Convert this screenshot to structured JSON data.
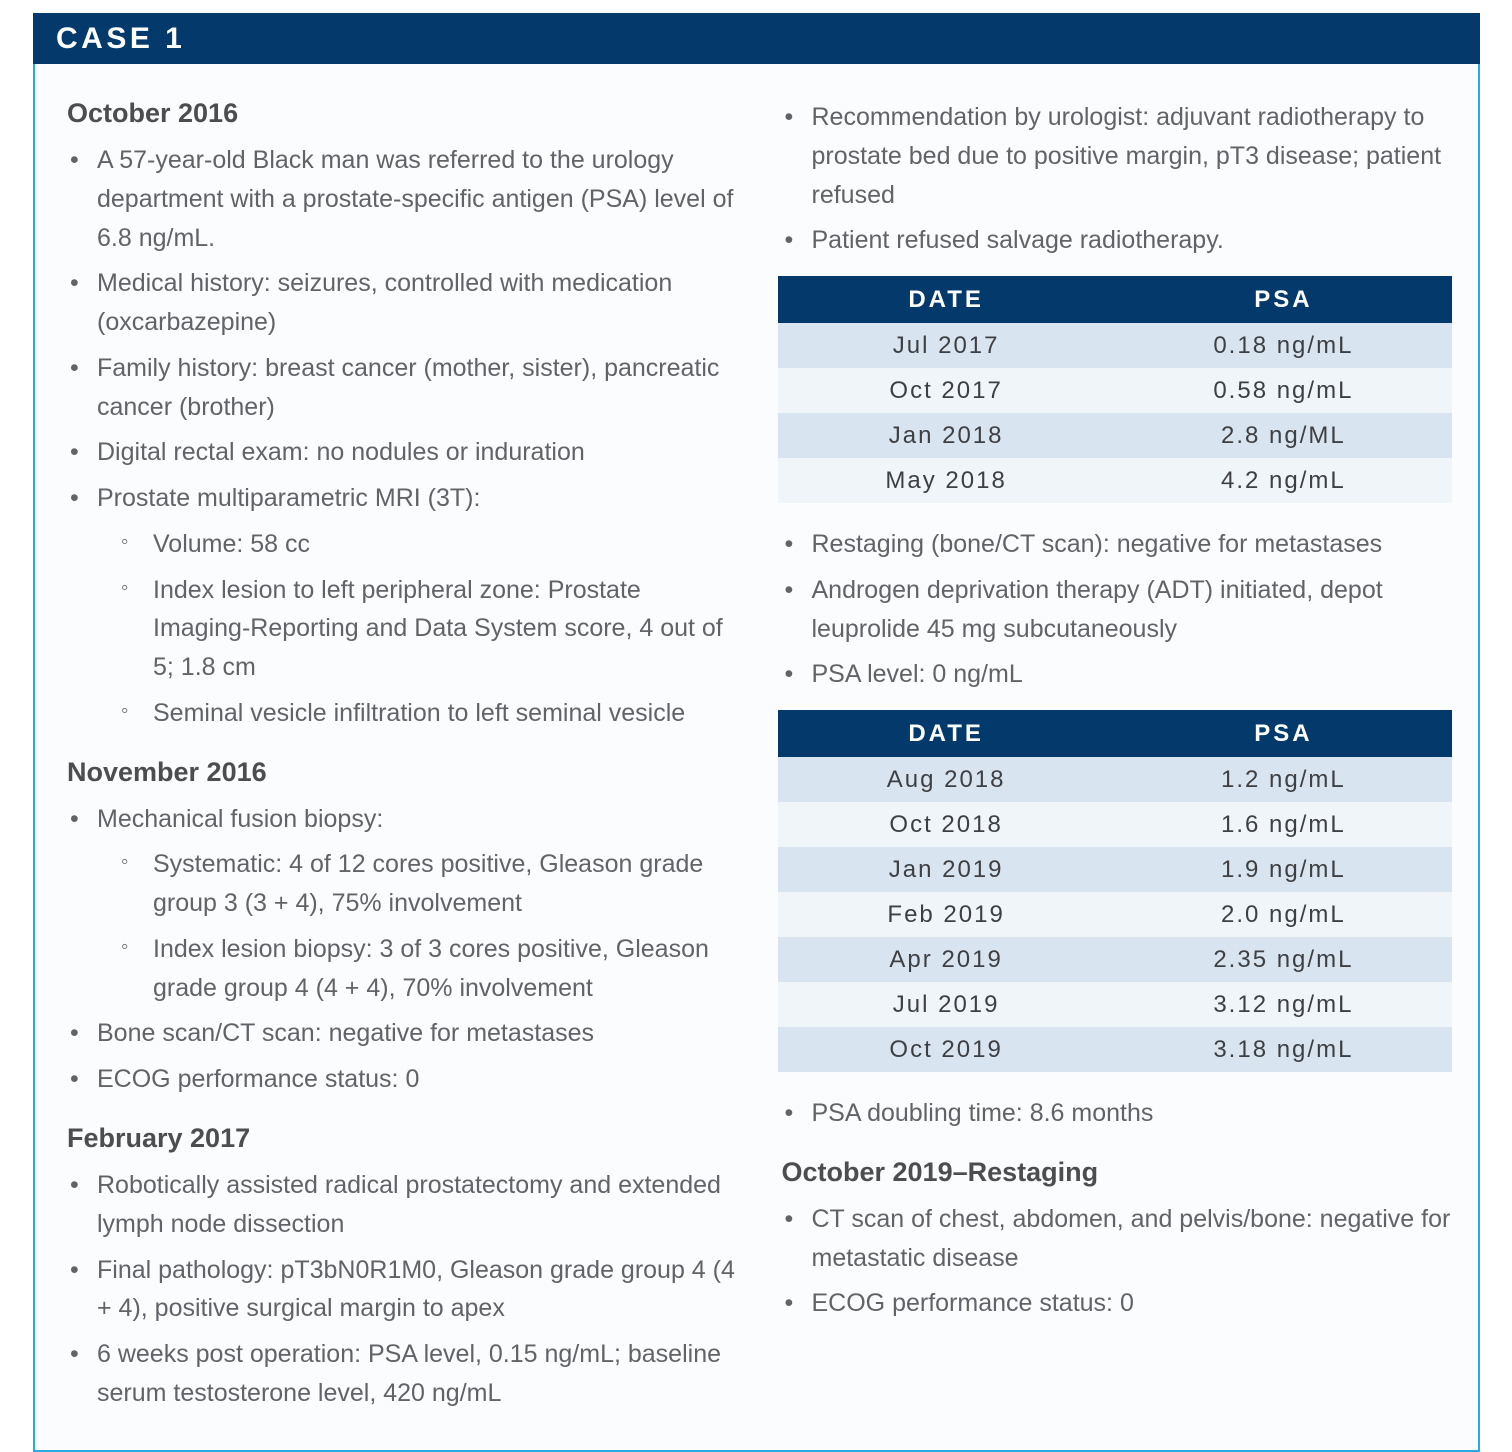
{
  "case_header": {
    "title": "CASE 1"
  },
  "colors": {
    "navy": "#03396b",
    "accent_border": "#29aae1",
    "row_shaded": "#d8e5f1",
    "row_light": "#f0f5fa",
    "card_background": "#fafcfe"
  },
  "left": {
    "sections": [
      {
        "heading": "October 2016",
        "items": [
          {
            "level": 1,
            "text": "A 57-year-old Black man was referred to the urology department with a prostate-specific antigen (PSA) level of 6.8 ng/mL."
          },
          {
            "level": 1,
            "text": "Medical history: seizures, controlled with medication (oxcarbazepine)"
          },
          {
            "level": 1,
            "text": "Family history: breast cancer (mother, sister), pancreatic cancer (brother)"
          },
          {
            "level": 1,
            "text": "Digital rectal exam: no nodules or induration"
          },
          {
            "level": 1,
            "text": "Prostate multiparametric MRI (3T):"
          },
          {
            "level": 2,
            "text": "Volume: 58 cc"
          },
          {
            "level": 2,
            "text": "Index lesion to left peripheral zone: Prostate Imaging-Reporting and Data System score, 4 out of 5; 1.8 cm"
          },
          {
            "level": 2,
            "text": "Seminal vesicle infiltration to left seminal vesicle"
          }
        ]
      },
      {
        "heading": "November 2016",
        "items": [
          {
            "level": 1,
            "text": "Mechanical fusion biopsy:"
          },
          {
            "level": 2,
            "text": "Systematic: 4 of 12 cores positive, Gleason grade group 3 (3 + 4), 75% involvement"
          },
          {
            "level": 2,
            "text": "Index lesion biopsy: 3 of 3 cores positive, Gleason grade group 4 (4 + 4), 70% involvement"
          },
          {
            "level": 1,
            "text": "Bone scan/CT scan: negative for metastases"
          },
          {
            "level": 1,
            "text": "ECOG performance status: 0"
          }
        ]
      },
      {
        "heading": "February 2017",
        "items": [
          {
            "level": 1,
            "text": "Robotically assisted radical prostatectomy and extended lymph node dissection"
          },
          {
            "level": 1,
            "text": "Final pathology: pT3bN0R1M0, Gleason grade group 4 (4 + 4), positive surgical margin to apex"
          },
          {
            "level": 1,
            "text": "6 weeks post operation: PSA level, 0.15 ng/mL; baseline serum testosterone level, 420 ng/mL"
          }
        ]
      }
    ]
  },
  "right": {
    "intro_items": [
      "Recommendation by urologist: adjuvant radiotherapy to prostate bed due to positive margin, pT3 disease; patient refused",
      "Patient refused salvage radiotherapy."
    ],
    "table1": {
      "headers": [
        "DATE",
        "PSA"
      ],
      "rows": [
        [
          "Jul 2017",
          "0.18 ng/mL"
        ],
        [
          "Oct 2017",
          "0.58 ng/mL"
        ],
        [
          "Jan 2018",
          "2.8 ng/ML"
        ],
        [
          "May 2018",
          "4.2 ng/mL"
        ]
      ]
    },
    "mid_items": [
      "Restaging (bone/CT scan): negative for metastases",
      "Androgen deprivation therapy (ADT) initiated, depot leuprolide 45 mg subcutaneously",
      "PSA level: 0 ng/mL"
    ],
    "table2": {
      "headers": [
        "DATE",
        "PSA"
      ],
      "rows": [
        [
          "Aug 2018",
          "1.2 ng/mL"
        ],
        [
          "Oct 2018",
          "1.6 ng/mL"
        ],
        [
          "Jan 2019",
          "1.9 ng/mL"
        ],
        [
          "Feb 2019",
          "2.0 ng/mL"
        ],
        [
          "Apr 2019",
          "2.35 ng/mL"
        ],
        [
          "Jul 2019",
          "3.12 ng/mL"
        ],
        [
          "Oct 2019",
          "3.18 ng/mL"
        ]
      ]
    },
    "post_table_item": "PSA doubling time: 8.6 months",
    "restaging": {
      "heading": "October 2019–Restaging",
      "items": [
        "CT scan of chest, abdomen, and pelvis/bone: negative for metastatic disease",
        "ECOG performance status: 0"
      ]
    }
  }
}
